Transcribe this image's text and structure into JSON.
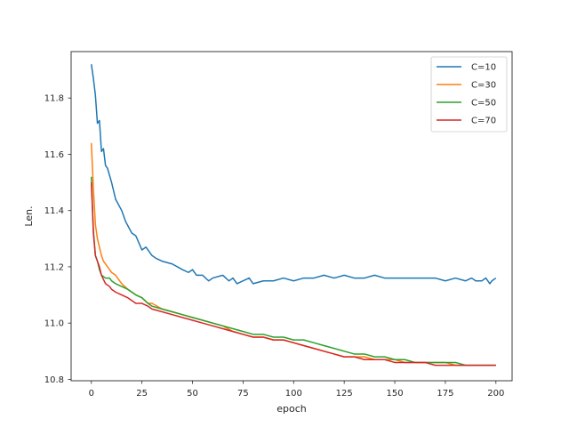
{
  "chart_data": {
    "type": "line",
    "title": "",
    "xlabel": "epoch",
    "ylabel": "Len.",
    "xlim": [
      -10,
      208
    ],
    "ylim": [
      10.795,
      11.965
    ],
    "xticks": [
      0,
      25,
      50,
      75,
      100,
      125,
      150,
      175,
      200
    ],
    "yticks": [
      10.8,
      11.0,
      11.2,
      11.4,
      11.6,
      11.8
    ],
    "grid": false,
    "legend": "top-right",
    "series": [
      {
        "name": "C=10",
        "color": "#1f77b4",
        "points": [
          [
            0,
            11.92
          ],
          [
            1,
            11.87
          ],
          [
            2,
            11.81
          ],
          [
            3,
            11.71
          ],
          [
            4,
            11.72
          ],
          [
            5,
            11.61
          ],
          [
            6,
            11.62
          ],
          [
            7,
            11.56
          ],
          [
            8,
            11.55
          ],
          [
            10,
            11.5
          ],
          [
            12,
            11.44
          ],
          [
            15,
            11.4
          ],
          [
            17,
            11.36
          ],
          [
            20,
            11.32
          ],
          [
            22,
            11.31
          ],
          [
            25,
            11.26
          ],
          [
            27,
            11.27
          ],
          [
            30,
            11.24
          ],
          [
            32,
            11.23
          ],
          [
            35,
            11.22
          ],
          [
            40,
            11.21
          ],
          [
            45,
            11.19
          ],
          [
            48,
            11.18
          ],
          [
            50,
            11.19
          ],
          [
            52,
            11.17
          ],
          [
            55,
            11.17
          ],
          [
            58,
            11.15
          ],
          [
            60,
            11.16
          ],
          [
            65,
            11.17
          ],
          [
            68,
            11.15
          ],
          [
            70,
            11.16
          ],
          [
            72,
            11.14
          ],
          [
            75,
            11.15
          ],
          [
            78,
            11.16
          ],
          [
            80,
            11.14
          ],
          [
            85,
            11.15
          ],
          [
            90,
            11.15
          ],
          [
            95,
            11.16
          ],
          [
            100,
            11.15
          ],
          [
            105,
            11.16
          ],
          [
            110,
            11.16
          ],
          [
            115,
            11.17
          ],
          [
            120,
            11.16
          ],
          [
            125,
            11.17
          ],
          [
            130,
            11.16
          ],
          [
            135,
            11.16
          ],
          [
            140,
            11.17
          ],
          [
            145,
            11.16
          ],
          [
            150,
            11.16
          ],
          [
            155,
            11.16
          ],
          [
            160,
            11.16
          ],
          [
            165,
            11.16
          ],
          [
            170,
            11.16
          ],
          [
            175,
            11.15
          ],
          [
            180,
            11.16
          ],
          [
            185,
            11.15
          ],
          [
            188,
            11.16
          ],
          [
            190,
            11.15
          ],
          [
            193,
            11.15
          ],
          [
            195,
            11.16
          ],
          [
            197,
            11.14
          ],
          [
            198,
            11.15
          ],
          [
            200,
            11.16
          ]
        ]
      },
      {
        "name": "C=30",
        "color": "#ff7f0e",
        "points": [
          [
            0,
            11.64
          ],
          [
            1,
            11.48
          ],
          [
            2,
            11.35
          ],
          [
            3,
            11.3
          ],
          [
            4,
            11.27
          ],
          [
            5,
            11.24
          ],
          [
            6,
            11.22
          ],
          [
            8,
            11.2
          ],
          [
            10,
            11.18
          ],
          [
            12,
            11.17
          ],
          [
            15,
            11.14
          ],
          [
            18,
            11.12
          ],
          [
            20,
            11.11
          ],
          [
            22,
            11.1
          ],
          [
            25,
            11.09
          ],
          [
            28,
            11.07
          ],
          [
            30,
            11.07
          ],
          [
            35,
            11.05
          ],
          [
            40,
            11.04
          ],
          [
            45,
            11.03
          ],
          [
            50,
            11.02
          ],
          [
            55,
            11.01
          ],
          [
            60,
            11.0
          ],
          [
            65,
            10.99
          ],
          [
            70,
            10.97
          ],
          [
            75,
            10.96
          ],
          [
            80,
            10.95
          ],
          [
            85,
            10.95
          ],
          [
            90,
            10.94
          ],
          [
            95,
            10.94
          ],
          [
            100,
            10.93
          ],
          [
            105,
            10.92
          ],
          [
            110,
            10.91
          ],
          [
            115,
            10.9
          ],
          [
            120,
            10.89
          ],
          [
            125,
            10.88
          ],
          [
            130,
            10.88
          ],
          [
            135,
            10.88
          ],
          [
            140,
            10.87
          ],
          [
            145,
            10.87
          ],
          [
            150,
            10.87
          ],
          [
            155,
            10.86
          ],
          [
            160,
            10.86
          ],
          [
            165,
            10.86
          ],
          [
            170,
            10.86
          ],
          [
            175,
            10.86
          ],
          [
            180,
            10.85
          ],
          [
            185,
            10.85
          ],
          [
            190,
            10.85
          ],
          [
            195,
            10.85
          ],
          [
            200,
            10.85
          ]
        ]
      },
      {
        "name": "C=50",
        "color": "#2ca02c",
        "points": [
          [
            0,
            11.52
          ],
          [
            1,
            11.33
          ],
          [
            2,
            11.24
          ],
          [
            3,
            11.22
          ],
          [
            4,
            11.19
          ],
          [
            5,
            11.17
          ],
          [
            7,
            11.16
          ],
          [
            9,
            11.16
          ],
          [
            10,
            11.15
          ],
          [
            12,
            11.14
          ],
          [
            15,
            11.13
          ],
          [
            18,
            11.12
          ],
          [
            20,
            11.11
          ],
          [
            22,
            11.1
          ],
          [
            25,
            11.09
          ],
          [
            28,
            11.07
          ],
          [
            30,
            11.06
          ],
          [
            35,
            11.05
          ],
          [
            40,
            11.04
          ],
          [
            45,
            11.03
          ],
          [
            50,
            11.02
          ],
          [
            55,
            11.01
          ],
          [
            60,
            11.0
          ],
          [
            65,
            10.99
          ],
          [
            70,
            10.98
          ],
          [
            75,
            10.97
          ],
          [
            80,
            10.96
          ],
          [
            85,
            10.96
          ],
          [
            90,
            10.95
          ],
          [
            95,
            10.95
          ],
          [
            100,
            10.94
          ],
          [
            105,
            10.94
          ],
          [
            110,
            10.93
          ],
          [
            115,
            10.92
          ],
          [
            120,
            10.91
          ],
          [
            125,
            10.9
          ],
          [
            130,
            10.89
          ],
          [
            135,
            10.89
          ],
          [
            140,
            10.88
          ],
          [
            145,
            10.88
          ],
          [
            150,
            10.87
          ],
          [
            155,
            10.87
          ],
          [
            160,
            10.86
          ],
          [
            165,
            10.86
          ],
          [
            170,
            10.86
          ],
          [
            175,
            10.86
          ],
          [
            180,
            10.86
          ],
          [
            185,
            10.85
          ],
          [
            190,
            10.85
          ],
          [
            195,
            10.85
          ],
          [
            200,
            10.85
          ]
        ]
      },
      {
        "name": "C=70",
        "color": "#d62728",
        "points": [
          [
            0,
            11.5
          ],
          [
            1,
            11.32
          ],
          [
            2,
            11.24
          ],
          [
            3,
            11.22
          ],
          [
            4,
            11.2
          ],
          [
            5,
            11.17
          ],
          [
            7,
            11.14
          ],
          [
            9,
            11.13
          ],
          [
            10,
            11.12
          ],
          [
            12,
            11.11
          ],
          [
            15,
            11.1
          ],
          [
            18,
            11.09
          ],
          [
            20,
            11.08
          ],
          [
            22,
            11.07
          ],
          [
            25,
            11.07
          ],
          [
            28,
            11.06
          ],
          [
            30,
            11.05
          ],
          [
            35,
            11.04
          ],
          [
            40,
            11.03
          ],
          [
            45,
            11.02
          ],
          [
            50,
            11.01
          ],
          [
            55,
            11.0
          ],
          [
            60,
            10.99
          ],
          [
            65,
            10.98
          ],
          [
            70,
            10.97
          ],
          [
            75,
            10.96
          ],
          [
            80,
            10.95
          ],
          [
            85,
            10.95
          ],
          [
            90,
            10.94
          ],
          [
            95,
            10.94
          ],
          [
            100,
            10.93
          ],
          [
            105,
            10.92
          ],
          [
            110,
            10.91
          ],
          [
            115,
            10.9
          ],
          [
            120,
            10.89
          ],
          [
            125,
            10.88
          ],
          [
            130,
            10.88
          ],
          [
            135,
            10.87
          ],
          [
            140,
            10.87
          ],
          [
            145,
            10.87
          ],
          [
            150,
            10.86
          ],
          [
            155,
            10.86
          ],
          [
            160,
            10.86
          ],
          [
            165,
            10.86
          ],
          [
            170,
            10.85
          ],
          [
            175,
            10.85
          ],
          [
            180,
            10.85
          ],
          [
            185,
            10.85
          ],
          [
            190,
            10.85
          ],
          [
            195,
            10.85
          ],
          [
            200,
            10.85
          ]
        ]
      }
    ]
  }
}
